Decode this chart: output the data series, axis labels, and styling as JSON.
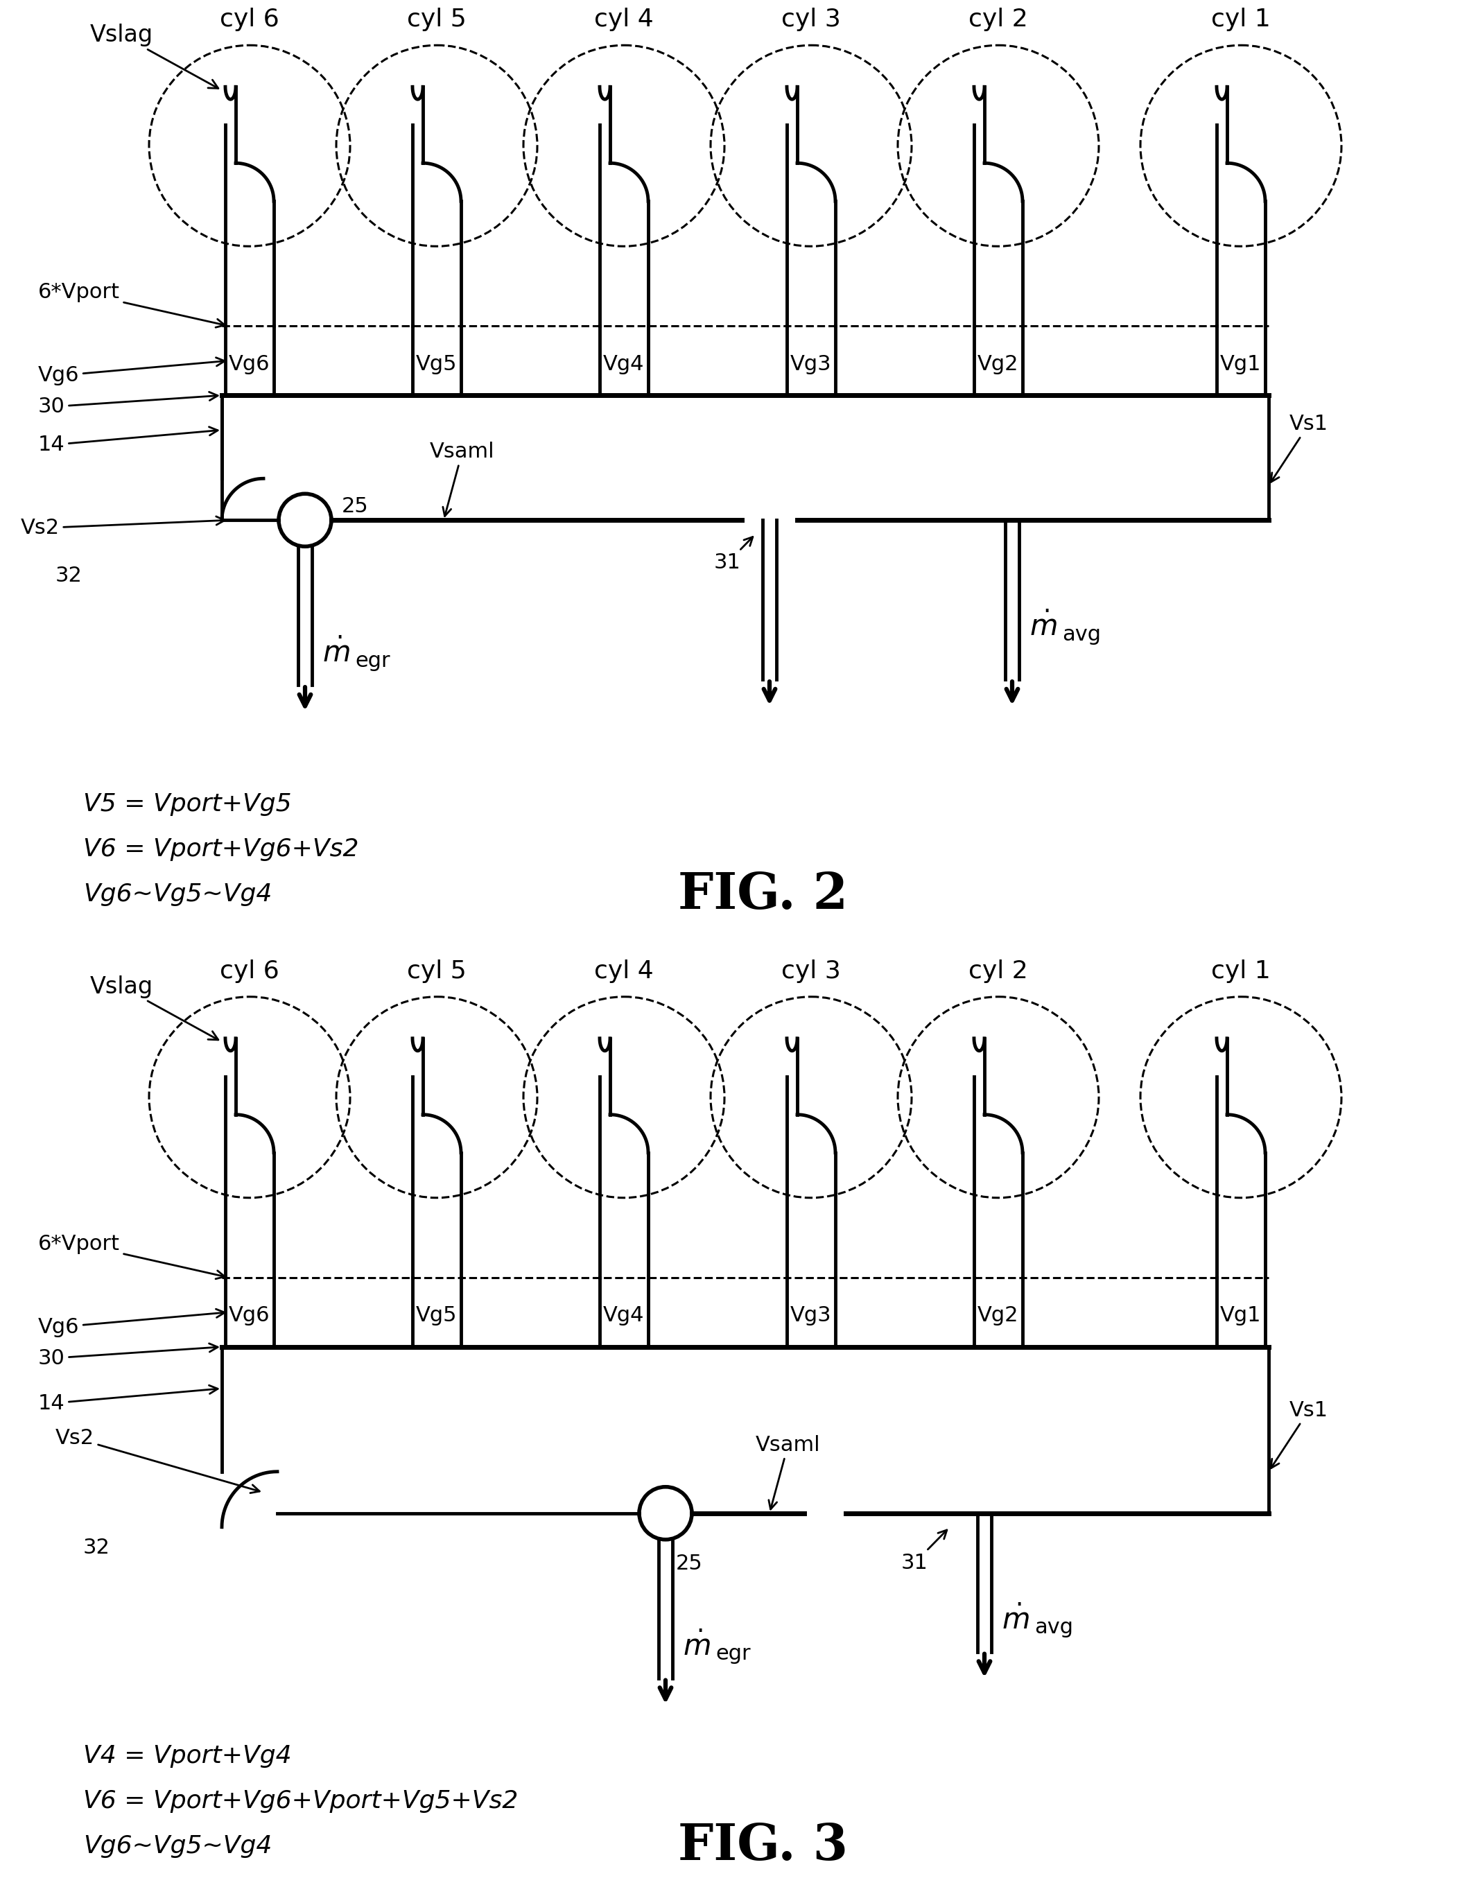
{
  "bg": "#ffffff",
  "lc": "#000000",
  "fig2_title": "FIG. 2",
  "fig3_title": "FIG. 3",
  "fig2_eq": [
    "V5 = Vport+Vg5",
    "V6 = Vport+Vg6+Vs2",
    "Vg6~Vg5~Vg4"
  ],
  "fig3_eq": [
    "V4 = Vport+Vg4",
    "V6 = Vport+Vg6+Vport+Vg5+Vs2",
    "Vg6~Vg5~Vg4"
  ],
  "cyl_labels": [
    "cyl 6",
    "cyl 5",
    "cyl 4",
    "cyl 3",
    "cyl 2",
    "cyl 1"
  ],
  "vg_labels": [
    "Vg6",
    "Vg5",
    "Vg4",
    "Vg3",
    "Vg2",
    "Vg1"
  ]
}
